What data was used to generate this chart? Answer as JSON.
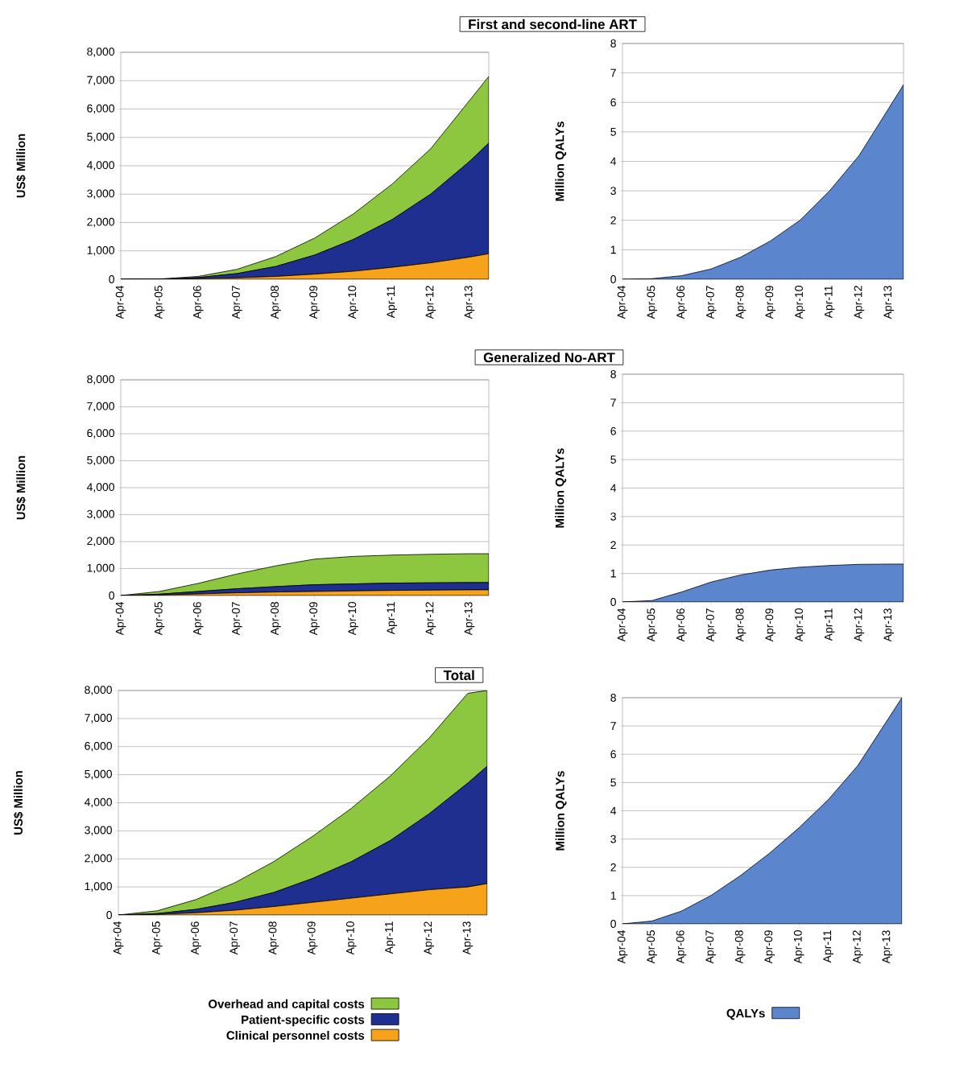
{
  "chart_data": [
    {
      "type": "area",
      "title": "First and second-line ART",
      "ylabel": "US$ Million",
      "stacked": true,
      "grid": "y",
      "x": [
        "2004-04",
        "2005-04",
        "2006-04",
        "2007-04",
        "2008-04",
        "2009-04",
        "2010-04",
        "2011-04",
        "2012-04",
        "2013-04",
        "2013-10"
      ],
      "series": [
        {
          "color": "#f7a21b",
          "values": [
            0,
            0,
            20,
            50,
            100,
            180,
            280,
            420,
            580,
            780,
            900
          ]
        },
        {
          "color": "#1f2f8f",
          "values": [
            0,
            0,
            40,
            150,
            350,
            670,
            1120,
            1680,
            2420,
            3370,
            3900
          ]
        },
        {
          "color": "#8dc63f",
          "values": [
            0,
            10,
            40,
            150,
            350,
            600,
            900,
            1250,
            1600,
            2150,
            2350
          ]
        }
      ],
      "xlim": [
        "2004-04",
        "2013-10"
      ],
      "xticks": [
        {
          "value": "2004-04",
          "label": "Apr-04"
        },
        {
          "value": "2005-04",
          "label": "Apr-05"
        },
        {
          "value": "2006-04",
          "label": "Apr-06"
        },
        {
          "value": "2007-04",
          "label": "Apr-07"
        },
        {
          "value": "2008-04",
          "label": "Apr-08"
        },
        {
          "value": "2009-04",
          "label": "Apr-09"
        },
        {
          "value": "2010-04",
          "label": "Apr-10"
        },
        {
          "value": "2011-04",
          "label": "Apr-11"
        },
        {
          "value": "2012-04",
          "label": "Apr-12"
        },
        {
          "value": "2013-04",
          "label": "Apr-13"
        }
      ],
      "ylim": [
        0,
        8000
      ],
      "yticks": [
        0,
        {
          "value": 1000,
          "label": "1,000"
        },
        {
          "value": 2000,
          "label": "2,000"
        },
        {
          "value": 3000,
          "label": "3,000"
        },
        {
          "value": 4000,
          "label": "4,000"
        },
        {
          "value": 5000,
          "label": "5,000"
        },
        {
          "value": 6000,
          "label": "6,000"
        },
        {
          "value": 7000,
          "label": "7,000"
        },
        {
          "value": 8000,
          "label": "8,000"
        }
      ]
    },
    {
      "type": "area",
      "ylabel": "Million QALYs",
      "grid": "y",
      "x": [
        "2004-04",
        "2005-04",
        "2006-04",
        "2007-04",
        "2008-04",
        "2009-04",
        "2010-04",
        "2011-04",
        "2012-04",
        "2013-04",
        "2013-10"
      ],
      "series": [
        {
          "color": "#5b85cc",
          "values": [
            0,
            0.02,
            0.12,
            0.35,
            0.75,
            1.3,
            2.0,
            3.0,
            4.2,
            5.8,
            6.6
          ]
        }
      ],
      "xlim": [
        "2004-04",
        "2013-10"
      ],
      "xticks": [
        {
          "value": "2004-04",
          "label": "Apr-04"
        },
        {
          "value": "2005-04",
          "label": "Apr-05"
        },
        {
          "value": "2006-04",
          "label": "Apr-06"
        },
        {
          "value": "2007-04",
          "label": "Apr-07"
        },
        {
          "value": "2008-04",
          "label": "Apr-08"
        },
        {
          "value": "2009-04",
          "label": "Apr-09"
        },
        {
          "value": "2010-04",
          "label": "Apr-10"
        },
        {
          "value": "2011-04",
          "label": "Apr-11"
        },
        {
          "value": "2012-04",
          "label": "Apr-12"
        },
        {
          "value": "2013-04",
          "label": "Apr-13"
        }
      ],
      "ylim": [
        0,
        8
      ],
      "yticks": [
        0,
        1,
        2,
        3,
        4,
        5,
        6,
        7,
        8
      ]
    },
    {
      "type": "area",
      "title": "Generalized No-ART",
      "ylabel": "US$ Million",
      "stacked": true,
      "grid": "y",
      "x": [
        "2004-04",
        "2005-04",
        "2006-04",
        "2007-04",
        "2008-04",
        "2009-04",
        "2010-04",
        "2011-04",
        "2012-04",
        "2013-04",
        "2013-10"
      ],
      "series": [
        {
          "color": "#f7a21b",
          "values": [
            0,
            20,
            60,
            100,
            130,
            150,
            170,
            190,
            200,
            210,
            210
          ]
        },
        {
          "color": "#1f2f8f",
          "values": [
            0,
            30,
            90,
            150,
            200,
            250,
            260,
            270,
            270,
            270,
            270
          ]
        },
        {
          "color": "#8dc63f",
          "values": [
            0,
            100,
            300,
            550,
            770,
            950,
            1020,
            1040,
            1060,
            1070,
            1070
          ]
        }
      ],
      "xlim": [
        "2004-04",
        "2013-10"
      ],
      "xticks": [
        {
          "value": "2004-04",
          "label": "Apr-04"
        },
        {
          "value": "2005-04",
          "label": "Apr-05"
        },
        {
          "value": "2006-04",
          "label": "Apr-06"
        },
        {
          "value": "2007-04",
          "label": "Apr-07"
        },
        {
          "value": "2008-04",
          "label": "Apr-08"
        },
        {
          "value": "2009-04",
          "label": "Apr-09"
        },
        {
          "value": "2010-04",
          "label": "Apr-10"
        },
        {
          "value": "2011-04",
          "label": "Apr-11"
        },
        {
          "value": "2012-04",
          "label": "Apr-12"
        },
        {
          "value": "2013-04",
          "label": "Apr-13"
        }
      ],
      "ylim": [
        0,
        8000
      ],
      "yticks": [
        0,
        {
          "value": 1000,
          "label": "1,000"
        },
        {
          "value": 2000,
          "label": "2,000"
        },
        {
          "value": 3000,
          "label": "3,000"
        },
        {
          "value": 4000,
          "label": "4,000"
        },
        {
          "value": 5000,
          "label": "5,000"
        },
        {
          "value": 6000,
          "label": "6,000"
        },
        {
          "value": 7000,
          "label": "7,000"
        },
        {
          "value": 8000,
          "label": "8,000"
        }
      ]
    },
    {
      "type": "area",
      "ylabel": "Million QALYs",
      "grid": "y",
      "x": [
        "2004-04",
        "2005-04",
        "2006-04",
        "2007-04",
        "2008-04",
        "2009-04",
        "2010-04",
        "2011-04",
        "2012-04",
        "2013-04",
        "2013-10"
      ],
      "series": [
        {
          "color": "#5b85cc",
          "values": [
            0,
            0.05,
            0.35,
            0.7,
            0.95,
            1.12,
            1.22,
            1.28,
            1.32,
            1.33,
            1.33
          ]
        }
      ],
      "xlim": [
        "2004-04",
        "2013-10"
      ],
      "xticks": [
        {
          "value": "2004-04",
          "label": "Apr-04"
        },
        {
          "value": "2005-04",
          "label": "Apr-05"
        },
        {
          "value": "2006-04",
          "label": "Apr-06"
        },
        {
          "value": "2007-04",
          "label": "Apr-07"
        },
        {
          "value": "2008-04",
          "label": "Apr-08"
        },
        {
          "value": "2009-04",
          "label": "Apr-09"
        },
        {
          "value": "2010-04",
          "label": "Apr-10"
        },
        {
          "value": "2011-04",
          "label": "Apr-11"
        },
        {
          "value": "2012-04",
          "label": "Apr-12"
        },
        {
          "value": "2013-04",
          "label": "Apr-13"
        }
      ],
      "ylim": [
        0,
        8
      ],
      "yticks": [
        0,
        1,
        2,
        3,
        4,
        5,
        6,
        7,
        8
      ]
    },
    {
      "type": "area",
      "title": "Total",
      "ylabel": "US$ Million",
      "stacked": true,
      "grid": "y",
      "legend": "bottom",
      "x": [
        "2004-04",
        "2005-04",
        "2006-04",
        "2007-04",
        "2008-04",
        "2009-04",
        "2010-04",
        "2011-04",
        "2012-04",
        "2013-04",
        "2013-10"
      ],
      "series": [
        {
          "name": "Clinical personnel costs",
          "color": "#f7a21b",
          "values": [
            0,
            20,
            80,
            170,
            300,
            450,
            600,
            750,
            900,
            1000,
            1120
          ]
        },
        {
          "name": "Patient-specific costs",
          "color": "#1f2f8f",
          "values": [
            0,
            30,
            120,
            280,
            500,
            850,
            1300,
            1900,
            2700,
            3700,
            4180
          ]
        },
        {
          "name": "Overhead and capital costs",
          "color": "#8dc63f",
          "values": [
            0,
            100,
            350,
            700,
            1100,
            1500,
            1900,
            2300,
            2700,
            3200,
            2700
          ]
        }
      ],
      "xlim": [
        "2004-04",
        "2013-10"
      ],
      "xticks": [
        {
          "value": "2004-04",
          "label": "Apr-04"
        },
        {
          "value": "2005-04",
          "label": "Apr-05"
        },
        {
          "value": "2006-04",
          "label": "Apr-06"
        },
        {
          "value": "2007-04",
          "label": "Apr-07"
        },
        {
          "value": "2008-04",
          "label": "Apr-08"
        },
        {
          "value": "2009-04",
          "label": "Apr-09"
        },
        {
          "value": "2010-04",
          "label": "Apr-10"
        },
        {
          "value": "2011-04",
          "label": "Apr-11"
        },
        {
          "value": "2012-04",
          "label": "Apr-12"
        },
        {
          "value": "2013-04",
          "label": "Apr-13"
        }
      ],
      "ylim": [
        0,
        8000
      ],
      "yticks": [
        0,
        {
          "value": 1000,
          "label": "1,000"
        },
        {
          "value": 2000,
          "label": "2,000"
        },
        {
          "value": 3000,
          "label": "3,000"
        },
        {
          "value": 4000,
          "label": "4,000"
        },
        {
          "value": 5000,
          "label": "5,000"
        },
        {
          "value": 6000,
          "label": "6,000"
        },
        {
          "value": 7000,
          "label": "7,000"
        },
        {
          "value": 8000,
          "label": "8,000"
        }
      ]
    },
    {
      "type": "area",
      "ylabel": "Million QALYs",
      "grid": "y",
      "legend": "bottom",
      "x": [
        "2004-04",
        "2005-04",
        "2006-04",
        "2007-04",
        "2008-04",
        "2009-04",
        "2010-04",
        "2011-04",
        "2012-04",
        "2013-04",
        "2013-10"
      ],
      "series": [
        {
          "name": "QALYs",
          "color": "#5b85cc",
          "values": [
            0,
            0.1,
            0.45,
            1.0,
            1.7,
            2.5,
            3.4,
            4.4,
            5.6,
            7.2,
            8.0
          ]
        }
      ],
      "xlim": [
        "2004-04",
        "2013-10"
      ],
      "xticks": [
        {
          "value": "2004-04",
          "label": "Apr-04"
        },
        {
          "value": "2005-04",
          "label": "Apr-05"
        },
        {
          "value": "2006-04",
          "label": "Apr-06"
        },
        {
          "value": "2007-04",
          "label": "Apr-07"
        },
        {
          "value": "2008-04",
          "label": "Apr-08"
        },
        {
          "value": "2009-04",
          "label": "Apr-09"
        },
        {
          "value": "2010-04",
          "label": "Apr-10"
        },
        {
          "value": "2011-04",
          "label": "Apr-11"
        },
        {
          "value": "2012-04",
          "label": "Apr-12"
        },
        {
          "value": "2013-04",
          "label": "Apr-13"
        }
      ],
      "ylim": [
        0,
        8
      ],
      "yticks": [
        0,
        1,
        2,
        3,
        4,
        5,
        6,
        7,
        8
      ]
    }
  ]
}
